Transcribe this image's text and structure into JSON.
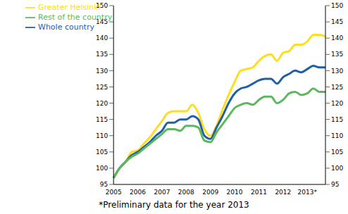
{
  "chart_data": {
    "type": "line",
    "footnote": "*Preliminary data for the year 2013",
    "categories": [
      "2005",
      null,
      null,
      null,
      "2006",
      null,
      null,
      null,
      "2007",
      null,
      null,
      null,
      "2008",
      null,
      null,
      null,
      "2009",
      null,
      null,
      null,
      "2010",
      null,
      null,
      null,
      "2011",
      null,
      null,
      null,
      "2012",
      null,
      null,
      null,
      "2013*",
      null,
      null,
      null
    ],
    "series": [
      {
        "name": "Greater Helsinki",
        "color": "#ffdd22",
        "values": [
          97,
          100,
          102,
          105,
          105.5,
          107.5,
          109.5,
          112,
          114.5,
          117,
          117.5,
          117.5,
          117.5,
          119.5,
          117,
          112,
          110,
          113,
          118,
          122.5,
          126.5,
          130,
          130.5,
          131,
          133,
          134.5,
          135,
          133,
          135.5,
          136,
          138,
          138,
          139,
          141,
          141,
          140.5
        ]
      },
      {
        "name": "Whole country",
        "color": "#1f5fa6",
        "values": [
          97,
          100,
          102,
          104,
          105,
          106.5,
          108,
          110,
          111.5,
          114,
          114,
          115,
          115,
          116,
          115,
          110,
          109,
          112.5,
          116,
          120,
          123,
          124.5,
          125,
          126,
          127,
          127.5,
          127.5,
          126,
          128,
          129,
          130,
          129.5,
          130.5,
          131.5,
          131,
          131
        ]
      },
      {
        "name": "Rest of the country",
        "color": "#5cb85c",
        "values": [
          97,
          100,
          102,
          103.5,
          104.5,
          106,
          107.5,
          109,
          110.5,
          112,
          112,
          111.5,
          113,
          113,
          112.5,
          108.5,
          108,
          111,
          113.5,
          116,
          118.5,
          119.5,
          120,
          119.5,
          121,
          122,
          122,
          120,
          121,
          123,
          123.5,
          122.5,
          123,
          124.5,
          123.5,
          123.5
        ]
      }
    ],
    "ylim": [
      95,
      150
    ],
    "yticks": [
      95,
      100,
      105,
      110,
      115,
      120,
      125,
      130,
      135,
      140,
      145,
      150
    ],
    "legend": "top-left",
    "grid": false
  }
}
